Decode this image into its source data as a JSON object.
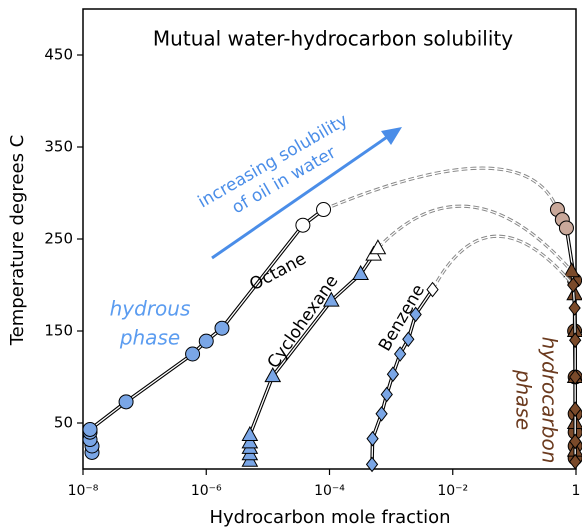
{
  "chart_data": {
    "type": "solubility",
    "title": "Mutual water-hydrocarbon solubility",
    "x_label": "Hydrocarbon mole fraction",
    "y_label": "Temperature degrees C",
    "xlim": [
      1e-08,
      1
    ],
    "ylim": [
      0,
      500
    ],
    "log_x": true,
    "xticks": [
      {
        "value": 1e-08,
        "label": "10⁻⁸"
      },
      {
        "value": 1e-06,
        "label": "10⁻⁶"
      },
      {
        "value": 0.0001,
        "label": "10⁻⁴"
      },
      {
        "value": 0.01,
        "label": "10⁻²"
      },
      1
    ],
    "yticks": [
      50,
      150,
      250,
      350,
      450
    ],
    "arrow_text": [
      "increasing solubility",
      "of oil in water"
    ],
    "water_phase_text": [
      "hydrous",
      "phase"
    ],
    "hydrocarbon_phase_text": [
      "hydrocarbon",
      "phase"
    ],
    "series": [
      {
        "name": "Octane",
        "marker": "circle",
        "x": [
          1.4e-08,
          1.4e-08,
          1.3e-08,
          1.3e-08,
          1.3e-08,
          5e-08,
          6e-07,
          1e-06,
          1.8e-06,
          3.7e-05,
          8e-05
        ],
        "y": [
          18,
          25,
          32,
          40,
          43,
          73,
          125,
          139,
          153,
          265,
          282
        ],
        "fills": [
          "#7aa6e6",
          "#7aa6e6",
          "#7aa6e6",
          "#7aa6e6",
          "#7aa6e6",
          "#7aa6e6",
          "#7aa6e6",
          "#7aa6e6",
          "#7aa6e6",
          "#ffffff",
          "#ffffff"
        ],
        "dome": {
          "x": 0.03,
          "y": 327
        },
        "hc_x": [
          0.5,
          0.6,
          0.7,
          0.95,
          0.95,
          0.97,
          0.97,
          0.97,
          0.97,
          0.97
        ],
        "hc_y": [
          282,
          271,
          262,
          205,
          150,
          100,
          60,
          40,
          25,
          12
        ],
        "hc_fills": [
          "#c9a89a",
          "#c9a89a",
          "#c9a89a",
          "#7a4a2a",
          "#7a4a2a",
          "#7a4a2a",
          "#7a4a2a",
          "#7a4a2a",
          "#7a4a2a",
          "#7a4a2a"
        ]
      },
      {
        "name": "Cyclohexane",
        "marker": "triangle",
        "x": [
          5.1e-06,
          5.1e-06,
          5.1e-06,
          5.1e-06,
          5.1e-06,
          1.2e-05,
          0.000107,
          0.00032,
          0.00052,
          0.00061
        ],
        "y": [
          9,
          16,
          23,
          29,
          37,
          101,
          183,
          212,
          233,
          240
        ],
        "fills": [
          "#7aa6e6",
          "#7aa6e6",
          "#7aa6e6",
          "#7aa6e6",
          "#7aa6e6",
          "#7aa6e6",
          "#7aa6e6",
          "#7aa6e6",
          "#ffffff",
          "#ffffff"
        ],
        "dome": {
          "x": 0.02,
          "y": 285
        },
        "hc_x": [
          0.85,
          0.95,
          0.97,
          0.97,
          0.97,
          0.97
        ],
        "hc_y": [
          215,
          190,
          150,
          100,
          50,
          20
        ],
        "hc_fills": [
          "#7a4a2a",
          "#7a4a2a",
          "#7a4a2a",
          "#7a4a2a",
          "#7a4a2a",
          "#7a4a2a"
        ]
      },
      {
        "name": "Benzene",
        "marker": "diamond",
        "x": [
          0.00049,
          0.0005,
          0.0007,
          0.00085,
          0.00107,
          0.0014,
          0.0019,
          0.0025,
          0.0047
        ],
        "y": [
          5,
          33,
          60,
          81,
          103,
          125,
          141,
          168,
          195
        ],
        "fills": [
          "#7aa6e6",
          "#7aa6e6",
          "#7aa6e6",
          "#7aa6e6",
          "#7aa6e6",
          "#7aa6e6",
          "#7aa6e6",
          "#7aa6e6",
          "#ffffff"
        ],
        "dome": {
          "x": 0.05,
          "y": 253
        },
        "hc_x": [
          0.9,
          0.95,
          0.97,
          0.97,
          0.97,
          0.97,
          0.97
        ],
        "hc_y": [
          200,
          175,
          140,
          100,
          65,
          30,
          8
        ],
        "hc_fills": [
          "#7a4a2a",
          "#7a4a2a",
          "#7a4a2a",
          "#7a4a2a",
          "#7a4a2a",
          "#7a4a2a",
          "#7a4a2a"
        ]
      }
    ]
  }
}
